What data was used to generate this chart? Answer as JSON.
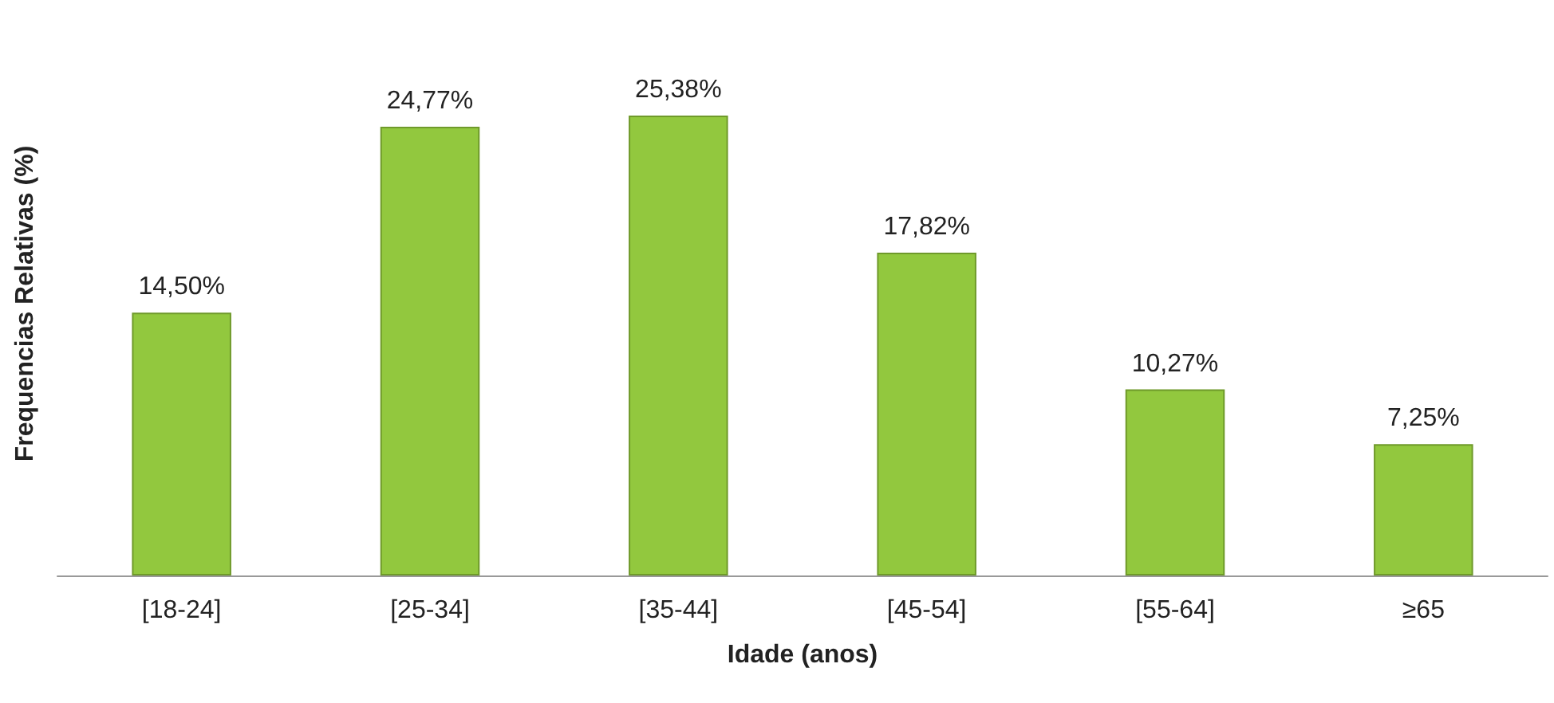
{
  "chart_data": {
    "type": "bar",
    "xlabel": "Idade (anos)",
    "ylabel": "Frequencias Relativas (%)",
    "categories": [
      "[18-24]",
      "[25-34]",
      "[35-44]",
      "[45-54]",
      "[55-64]",
      "≥65"
    ],
    "values": [
      14.5,
      24.77,
      25.38,
      17.82,
      10.27,
      7.25
    ],
    "value_labels": [
      "14,50%",
      "24,77%",
      "25,38%",
      "17,82%",
      "10,27%",
      "7,25%"
    ],
    "color": "#92c83e",
    "grid": false
  }
}
